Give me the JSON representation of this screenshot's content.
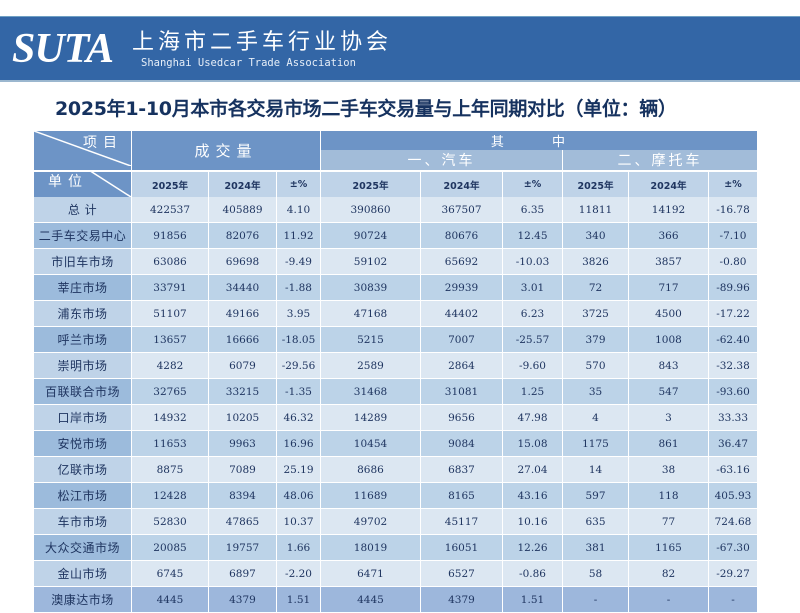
{
  "banner": {
    "logo": "SUTA",
    "name_cn": "上海市二手车行业协会",
    "name_en": "Shanghai Usedcar Trade Association",
    "color": "#3366a6"
  },
  "title": "2025年1-10月本市各交易市场二手车交易量与上年同期对比（单位：辆）",
  "table": {
    "corner_top": "项目",
    "corner_bottom": "单位",
    "group_deal": "成交量",
    "group_among": "其 中",
    "sub_car": "一、汽车",
    "sub_moto": "二、摩托车",
    "columns": [
      "2025年",
      "2024年",
      "±%",
      "2025年",
      "2024年",
      "±%",
      "2025年",
      "2024年",
      "±%"
    ],
    "rows": [
      {
        "name": "总 计",
        "values": [
          "422537",
          "405889",
          "4.10",
          "390860",
          "367507",
          "6.35",
          "11811",
          "14192",
          "-16.78"
        ]
      },
      {
        "name": "二手车交易中心",
        "values": [
          "91856",
          "82076",
          "11.92",
          "90724",
          "80676",
          "12.45",
          "340",
          "366",
          "-7.10"
        ]
      },
      {
        "name": "市旧车市场",
        "values": [
          "63086",
          "69698",
          "-9.49",
          "59102",
          "65692",
          "-10.03",
          "3826",
          "3857",
          "-0.80"
        ]
      },
      {
        "name": "莘庄市场",
        "values": [
          "33791",
          "34440",
          "-1.88",
          "30839",
          "29939",
          "3.01",
          "72",
          "717",
          "-89.96"
        ]
      },
      {
        "name": "浦东市场",
        "values": [
          "51107",
          "49166",
          "3.95",
          "47168",
          "44402",
          "6.23",
          "3725",
          "4500",
          "-17.22"
        ]
      },
      {
        "name": "呼兰市场",
        "values": [
          "13657",
          "16666",
          "-18.05",
          "5215",
          "7007",
          "-25.57",
          "379",
          "1008",
          "-62.40"
        ]
      },
      {
        "name": "崇明市场",
        "values": [
          "4282",
          "6079",
          "-29.56",
          "2589",
          "2864",
          "-9.60",
          "570",
          "843",
          "-32.38"
        ]
      },
      {
        "name": "百联联合市场",
        "values": [
          "32765",
          "33215",
          "-1.35",
          "31468",
          "31081",
          "1.25",
          "35",
          "547",
          "-93.60"
        ]
      },
      {
        "name": "口岸市场",
        "values": [
          "14932",
          "10205",
          "46.32",
          "14289",
          "9656",
          "47.98",
          "4",
          "3",
          "33.33"
        ]
      },
      {
        "name": "安悦市场",
        "values": [
          "11653",
          "9963",
          "16.96",
          "10454",
          "9084",
          "15.08",
          "1175",
          "861",
          "36.47"
        ]
      },
      {
        "name": "亿联市场",
        "values": [
          "8875",
          "7089",
          "25.19",
          "8686",
          "6837",
          "27.04",
          "14",
          "38",
          "-63.16"
        ]
      },
      {
        "name": "松江市场",
        "values": [
          "12428",
          "8394",
          "48.06",
          "11689",
          "8165",
          "43.16",
          "597",
          "118",
          "405.93"
        ]
      },
      {
        "name": "车市市场",
        "values": [
          "52830",
          "47865",
          "10.37",
          "49702",
          "45117",
          "10.16",
          "635",
          "77",
          "724.68"
        ]
      },
      {
        "name": "大众交通市场",
        "values": [
          "20085",
          "19757",
          "1.66",
          "18019",
          "16051",
          "12.26",
          "381",
          "1165",
          "-67.30"
        ]
      },
      {
        "name": "金山市场",
        "values": [
          "6745",
          "6897",
          "-2.20",
          "6471",
          "6527",
          "-0.86",
          "58",
          "82",
          "-29.27"
        ]
      },
      {
        "name": "澳康达市场",
        "values": [
          "4445",
          "4379",
          "1.51",
          "4445",
          "4379",
          "1.51",
          "-",
          "-",
          "-"
        ]
      }
    ]
  }
}
